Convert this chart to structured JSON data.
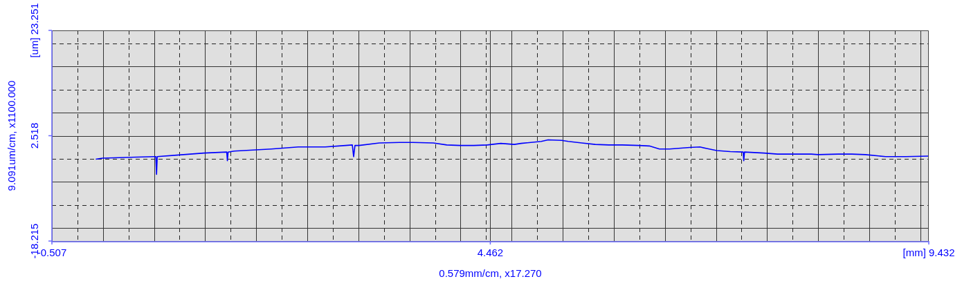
{
  "chart_data": {
    "type": "line",
    "xlabel": "0.579mm/cm, x17.270",
    "ylabel": "9.091um/cm, x1100.000",
    "x": [
      -0.01,
      0.067,
      0.449,
      0.656,
      0.671,
      0.679,
      0.687,
      0.908,
      1.215,
      1.475,
      1.482,
      1.49,
      1.559,
      1.98,
      2.286,
      2.592,
      2.821,
      2.898,
      2.913,
      2.928,
      2.974,
      3.204,
      3.433,
      3.586,
      3.816,
      3.969,
      4.122,
      4.275,
      4.428,
      4.581,
      4.734,
      4.811,
      5.04,
      5.117,
      5.27,
      5.346,
      5.499,
      5.652,
      5.805,
      5.958,
      6.149,
      6.264,
      6.379,
      6.494,
      6.723,
      6.838,
      6.915,
      7.029,
      7.182,
      7.328,
      7.335,
      7.343,
      7.565,
      7.718,
      7.871,
      8.101,
      8.177,
      8.406,
      8.56,
      8.713,
      8.942,
      9.172,
      9.432
    ],
    "series": [
      {
        "color": "#0000ff",
        "values": [
          -2.1,
          -1.9,
          -1.7,
          -1.6,
          -1.6,
          -5.1,
          -1.6,
          -1.3,
          -0.9,
          -0.7,
          -2.4,
          -0.7,
          -0.5,
          -0.1,
          0.3,
          0.3,
          0.6,
          0.7,
          -1.6,
          0.6,
          0.6,
          1.1,
          1.2,
          1.2,
          1.1,
          0.7,
          0.6,
          0.6,
          0.7,
          1.0,
          0.8,
          1.0,
          1.4,
          1.7,
          1.6,
          1.4,
          1.1,
          0.8,
          0.7,
          0.7,
          0.6,
          0.5,
          -0.1,
          -0.1,
          0.2,
          0.3,
          0.0,
          -0.4,
          -0.6,
          -0.7,
          -2.4,
          -0.7,
          -0.9,
          -1.1,
          -1.1,
          -1.1,
          -1.2,
          -1.1,
          -1.1,
          -1.2,
          -1.6,
          -1.6,
          -1.5
        ]
      }
    ],
    "xlim": [
      -0.507,
      9.432
    ],
    "ylim": [
      -18.215,
      23.251
    ],
    "xticks": [
      -0.507,
      {
        "value": -0.218,
        "label": null
      },
      {
        "value": 0.072,
        "label": null
      },
      {
        "value": 0.361,
        "label": null
      },
      {
        "value": 0.651,
        "label": null
      },
      {
        "value": 0.94,
        "label": null
      },
      {
        "value": 1.23,
        "label": null
      },
      {
        "value": 1.519,
        "label": null
      },
      {
        "value": 1.809,
        "label": null
      },
      {
        "value": 2.098,
        "label": null
      },
      {
        "value": 2.388,
        "label": null
      },
      {
        "value": 2.677,
        "label": null
      },
      {
        "value": 2.967,
        "label": null
      },
      {
        "value": 3.256,
        "label": null
      },
      {
        "value": 3.546,
        "label": null
      },
      {
        "value": 3.835,
        "label": null
      },
      {
        "value": 4.125,
        "label": null
      },
      {
        "value": 4.414,
        "label": null
      },
      4.462,
      {
        "value": 4.704,
        "label": null
      },
      {
        "value": 4.993,
        "label": null
      },
      {
        "value": 5.283,
        "label": null
      },
      {
        "value": 5.572,
        "label": null
      },
      {
        "value": 5.862,
        "label": null
      },
      {
        "value": 6.151,
        "label": null
      },
      {
        "value": 6.441,
        "label": null
      },
      {
        "value": 6.73,
        "label": null
      },
      {
        "value": 7.02,
        "label": null
      },
      {
        "value": 7.309,
        "label": null
      },
      {
        "value": 7.598,
        "label": null
      },
      {
        "value": 7.888,
        "label": null
      },
      {
        "value": 8.177,
        "label": null
      },
      {
        "value": 8.467,
        "label": null
      },
      {
        "value": 8.756,
        "label": null
      },
      {
        "value": 9.046,
        "label": null
      },
      {
        "value": 9.335,
        "label": null
      },
      {
        "value": 9.432,
        "label": "[mm] 9.432"
      }
    ],
    "yticks": [
      -18.215,
      {
        "value": -15.664,
        "label": null
      },
      {
        "value": -11.119,
        "label": null
      },
      {
        "value": -6.573,
        "label": null
      },
      {
        "value": -2.028,
        "label": null
      },
      2.518,
      {
        "value": 7.064,
        "label": null
      },
      {
        "value": 11.609,
        "label": null
      },
      {
        "value": 16.155,
        "label": null
      },
      {
        "value": 20.7,
        "label": null
      },
      {
        "value": 23.251,
        "label": "[um] 23.251"
      }
    ],
    "grid": true,
    "legend": false,
    "marker": "none",
    "line_style": "solid"
  }
}
